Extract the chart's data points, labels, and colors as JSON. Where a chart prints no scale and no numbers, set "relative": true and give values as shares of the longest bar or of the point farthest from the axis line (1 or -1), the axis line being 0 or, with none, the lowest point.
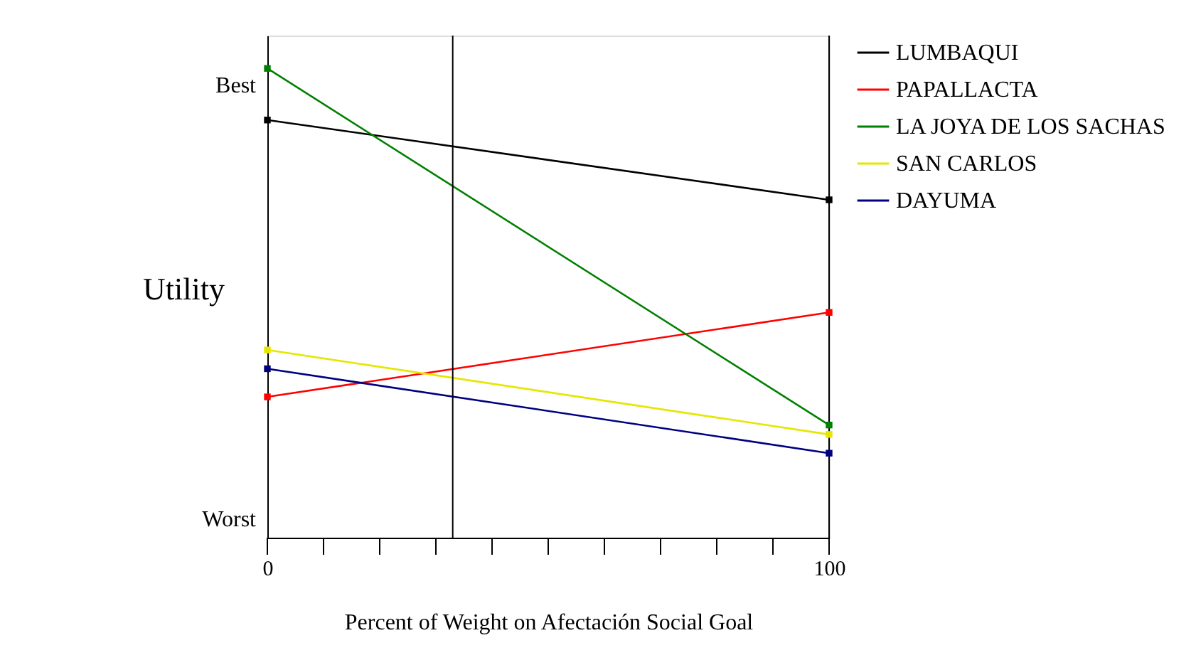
{
  "chart_data": {
    "type": "line",
    "xlabel": "Percent of Weight on Afectación Social Goal",
    "ylabel": "Utility",
    "x": [
      0,
      100
    ],
    "series": [
      {
        "name": "LUMBAQUI",
        "color": "#000000",
        "values": [
          0.89,
          0.72
        ]
      },
      {
        "name": "PAPALLACTA",
        "color": "#ff0000",
        "values": [
          0.3,
          0.48
        ]
      },
      {
        "name": "LA JOYA DE LOS SACHAS",
        "color": "#008000",
        "values": [
          1,
          0.24
        ]
      },
      {
        "name": "SAN CARLOS",
        "color": "#e6e600",
        "values": [
          0.4,
          0.22
        ]
      },
      {
        "name": "DAYUMA",
        "color": "#000080",
        "values": [
          0.36,
          0.18
        ]
      }
    ],
    "relative": true,
    "annotations": [
      "Best",
      "Worst"
    ],
    "xlim": [
      0,
      100
    ],
    "xticks": [
      {
        "value": 0,
        "label": "0"
      },
      {
        "value": 10,
        "label": null
      },
      {
        "value": 20,
        "label": null
      },
      {
        "value": 30,
        "label": null
      },
      {
        "value": 40,
        "label": null
      },
      {
        "value": 50,
        "label": null
      },
      {
        "value": 60,
        "label": null
      },
      {
        "value": 70,
        "label": null
      },
      {
        "value": 80,
        "label": null
      },
      {
        "value": 90,
        "label": null
      },
      {
        "value": 100,
        "label": "100"
      }
    ],
    "ref_lines": [
      {
        "axis": "x",
        "value": 33,
        "color": "#000000"
      },
      {
        "axis": "x",
        "value": 100,
        "color": "#000000"
      }
    ],
    "marker": "square",
    "line_style": "solid",
    "grid": false,
    "legend": "top right"
  }
}
